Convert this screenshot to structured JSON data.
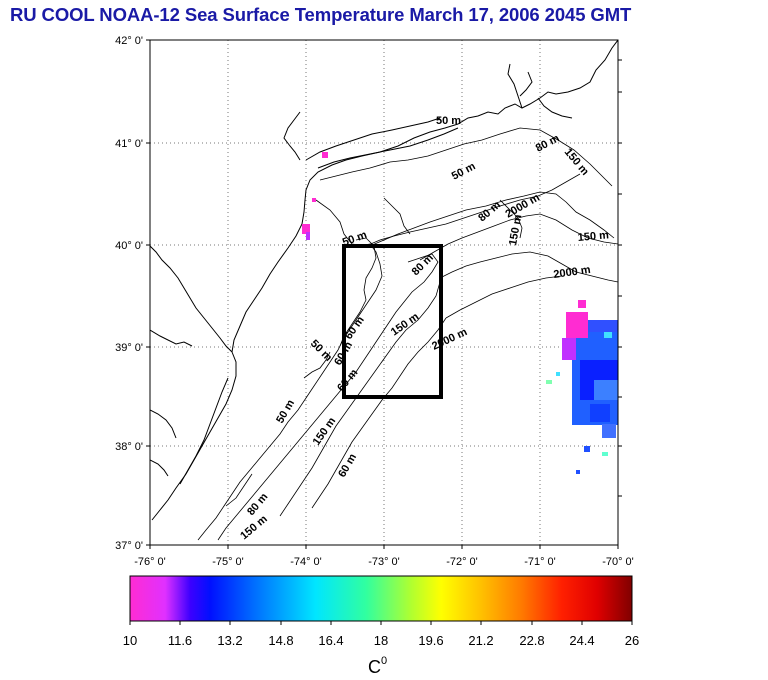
{
  "title": "RU COOL  NOAA-12 Sea Surface Temperature March 17, 2006 2045 GMT",
  "lat_labels": [
    "42° 0'",
    "41° 0'",
    "40° 0'",
    "39° 0'",
    "38° 0'",
    "37° 0'"
  ],
  "lon_labels": [
    "-76° 0'",
    "-75° 0'",
    "-74° 0'",
    "-73° 0'",
    "-72° 0'",
    "-71° 0'",
    "-70° 0'"
  ],
  "contour_labels": [
    "50 m",
    "50 m",
    "50 m",
    "50 m",
    "50 m",
    "80 m",
    "80 m",
    "80 m",
    "80 m",
    "150 m",
    "150 m",
    "150 m",
    "150 m",
    "150 m",
    "150 m",
    "2000 m",
    "2000 m",
    "2000 m",
    "60 m",
    "60 m",
    "60 m",
    "60 m"
  ],
  "colorbar": {
    "ticks": [
      "10",
      "11.6",
      "13.2",
      "14.8",
      "16.4",
      "18",
      "19.6",
      "21.2",
      "22.8",
      "24.4",
      "26"
    ],
    "unit": "C",
    "unit_sup": "0"
  }
}
